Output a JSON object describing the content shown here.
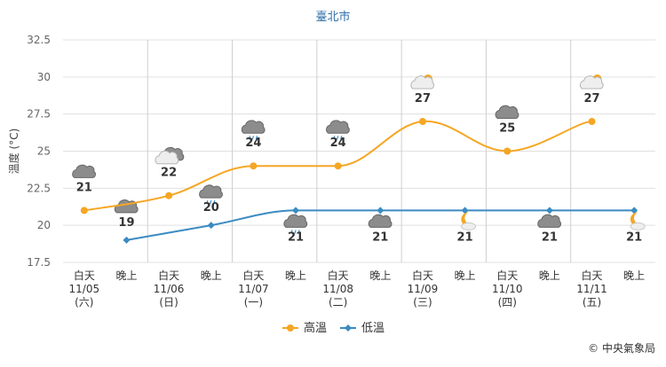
{
  "chart_data": {
    "type": "line",
    "title": "臺北市",
    "ylabel": "溫度 (°C)",
    "ylim": [
      17.5,
      32.5
    ],
    "yticks": [
      "32.5",
      "30",
      "27.5",
      "25",
      "22.5",
      "20",
      "17.5"
    ],
    "grid": true,
    "legend_position": "bottom-center",
    "colors": {
      "high": "#f5a623",
      "low": "#3b8bc2"
    },
    "days": [
      {
        "date": "11/05",
        "weekday": "(六)",
        "weekday_color": "#d0121b"
      },
      {
        "date": "11/06",
        "weekday": "(日)",
        "weekday_color": "#d0121b"
      },
      {
        "date": "11/07",
        "weekday": "(一)",
        "weekday_color": "#333333"
      },
      {
        "date": "11/08",
        "weekday": "(二)",
        "weekday_color": "#333333"
      },
      {
        "date": "11/09",
        "weekday": "(三)",
        "weekday_color": "#333333"
      },
      {
        "date": "11/10",
        "weekday": "(四)",
        "weekday_color": "#333333"
      },
      {
        "date": "11/11",
        "weekday": "(五)",
        "weekday_color": "#333333"
      }
    ],
    "slot_labels": [
      "白天",
      "晚上"
    ],
    "series": [
      {
        "name": "高溫",
        "values": [
          21,
          22,
          24,
          24,
          27,
          25,
          27
        ],
        "icons": [
          "cloudy-icon",
          "partly-cloudy-icon",
          "cloudy-rain-icon",
          "cloudy-rain-icon",
          "sunny-cloudy-icon",
          "cloudy-icon",
          "sunny-cloudy-icon"
        ]
      },
      {
        "name": "低溫",
        "values": [
          19,
          20,
          21,
          21,
          21,
          21,
          21
        ],
        "icons": [
          "cloudy-icon",
          "cloudy-rain-icon",
          "cloudy-rain-icon",
          "cloudy-icon",
          "moon-cloud-icon",
          "cloudy-icon",
          "moon-cloud-icon"
        ]
      }
    ]
  },
  "credit": "© 中央氣象局"
}
